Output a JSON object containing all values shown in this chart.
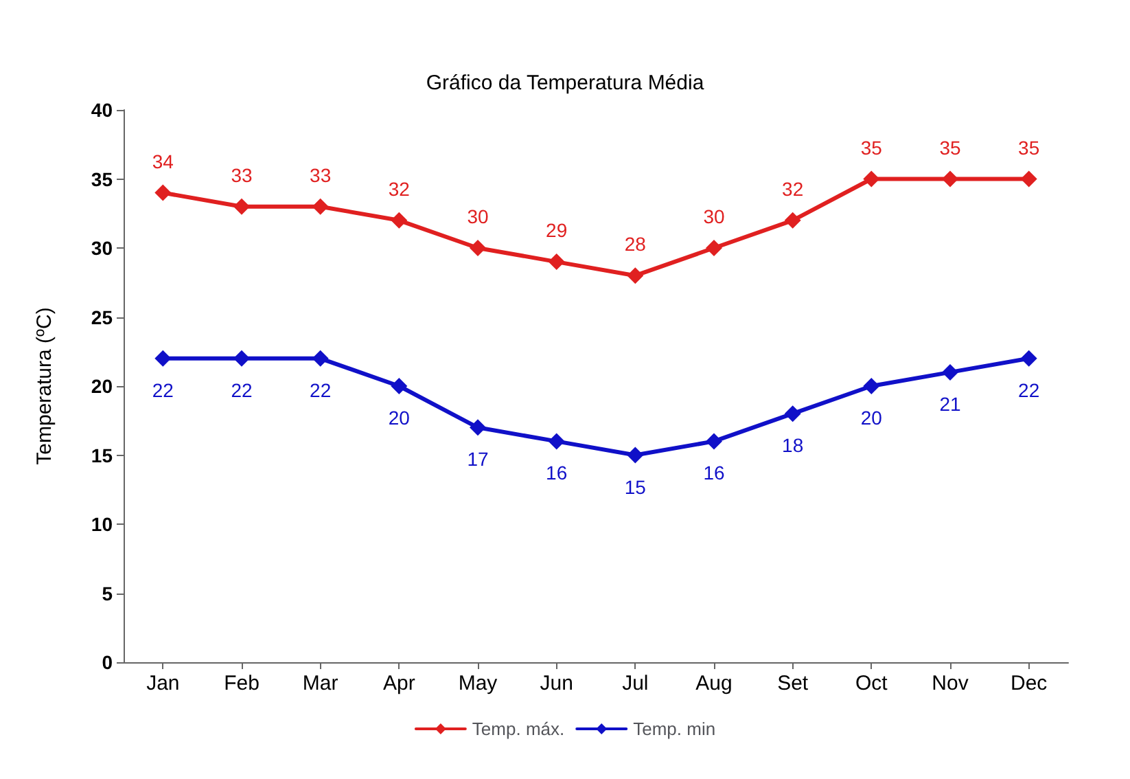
{
  "chart_data": {
    "type": "line",
    "title": "Gráfico da Temperatura Média",
    "ylabel": "Temperatura (ºC)",
    "categories": [
      "Jan",
      "Feb",
      "Mar",
      "Apr",
      "May",
      "Jun",
      "Jul",
      "Aug",
      "Set",
      "Oct",
      "Nov",
      "Dec"
    ],
    "series": [
      {
        "name": "Temp. máx.",
        "color": "#e02020",
        "values": [
          34,
          33,
          33,
          32,
          30,
          29,
          28,
          30,
          32,
          35,
          35,
          35
        ]
      },
      {
        "name": "Temp. min",
        "color": "#1010c8",
        "values": [
          22,
          22,
          22,
          20,
          17,
          16,
          15,
          16,
          18,
          20,
          21,
          22
        ]
      }
    ],
    "ylim": [
      0,
      40
    ],
    "yticks": [
      0,
      5,
      10,
      15,
      20,
      25,
      30,
      35,
      40
    ],
    "data_labels": true,
    "legend": "bottom",
    "marker": "diamond",
    "line_style": "solid",
    "grid": false
  }
}
